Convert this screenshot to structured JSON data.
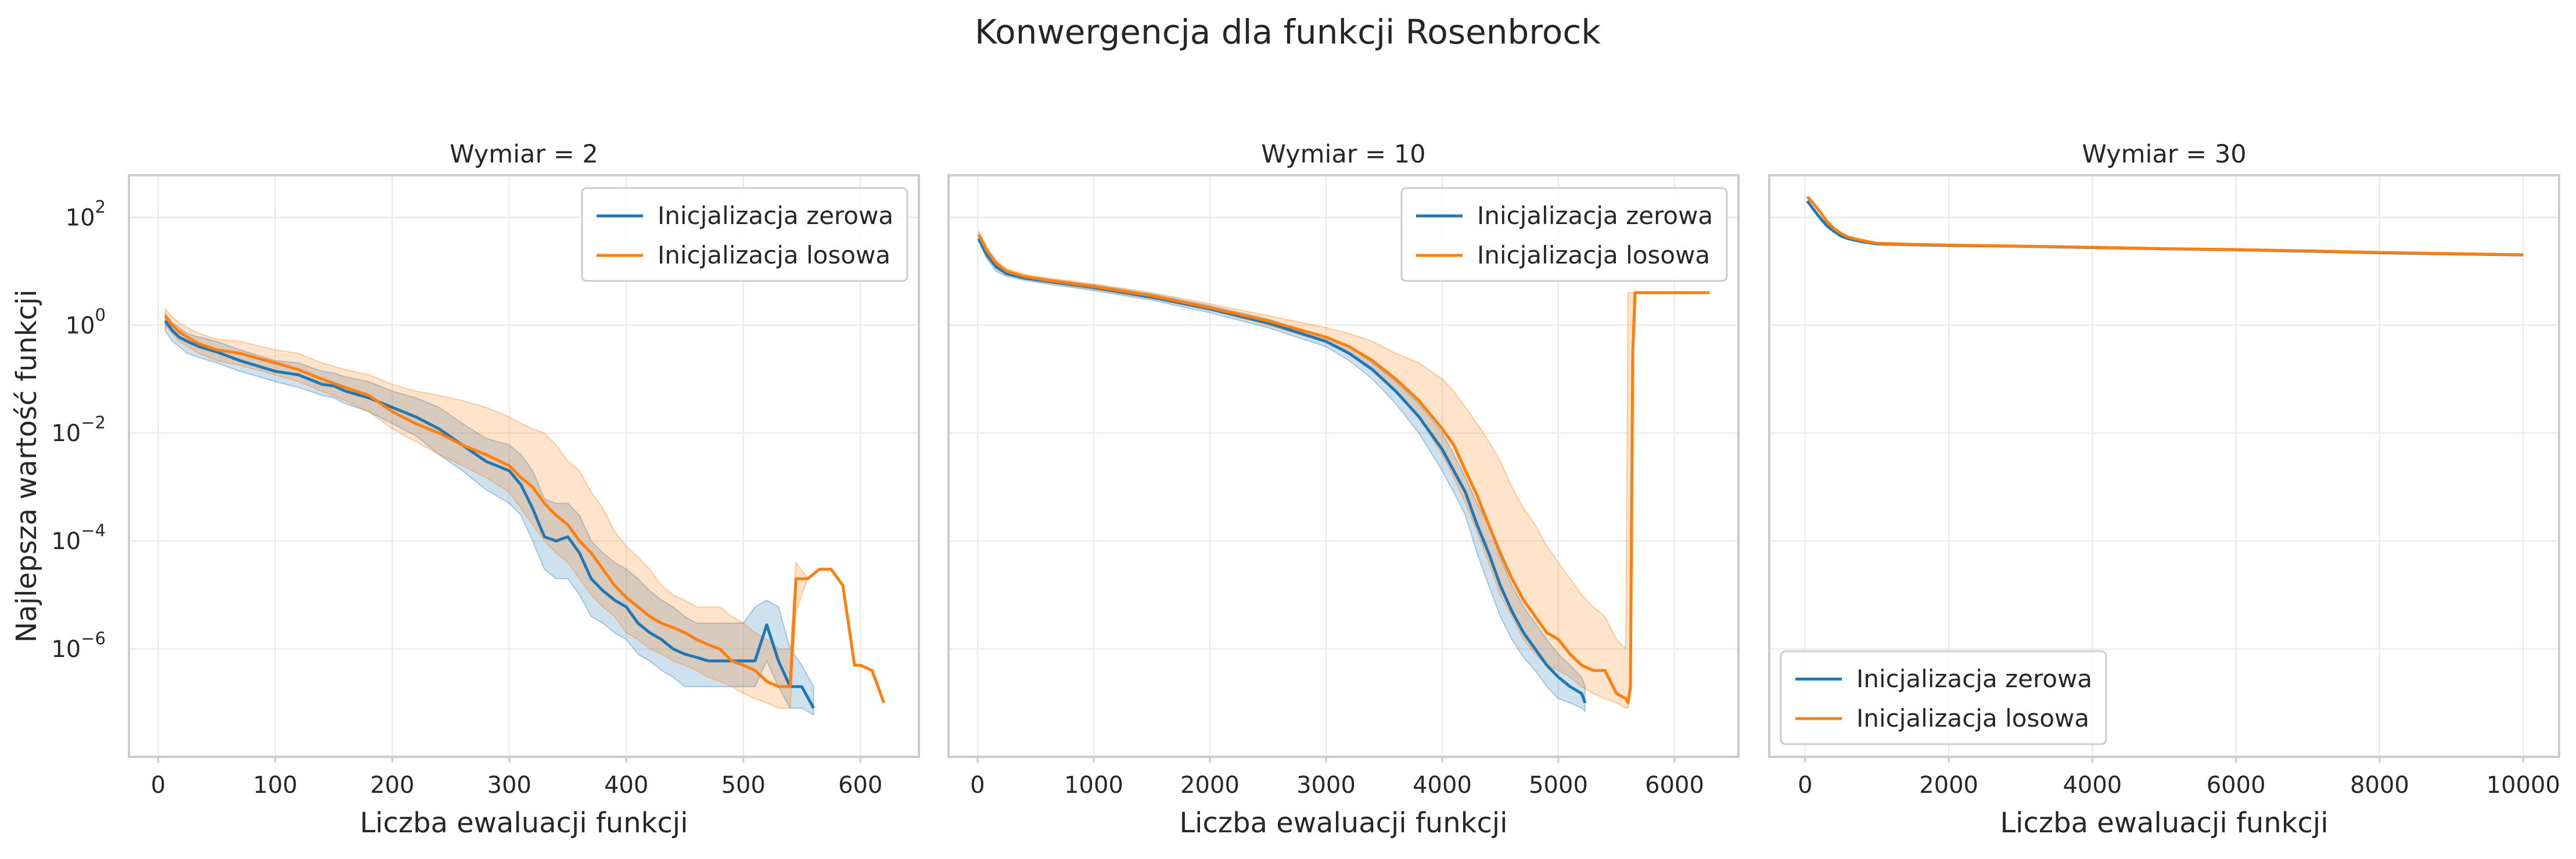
{
  "figure_title": "Konwergencja dla funkcji Rosenbrock",
  "colors": {
    "zero": "#1f77b4",
    "random": "#ff7f0e"
  },
  "chart_data": [
    {
      "type": "line",
      "title": "Wymiar = 2",
      "xlabel": "Liczba ewaluacji funkcji",
      "ylabel": "Najlepsza wartość funkcji",
      "y_scale": "log",
      "xlim": [
        -25,
        650
      ],
      "ylim": [
        1e-08,
        600
      ],
      "x_ticks": [
        0,
        100,
        200,
        300,
        400,
        500,
        600
      ],
      "x_tick_labels": [
        "0",
        "100",
        "200",
        "300",
        "400",
        "500",
        "600"
      ],
      "y_ticks": [
        100,
        1,
        0.01,
        0.0001,
        1e-06
      ],
      "y_tick_labels": [
        [
          "10",
          "2"
        ],
        [
          "10",
          "0"
        ],
        [
          "10",
          "−2"
        ],
        [
          "10",
          "−4"
        ],
        [
          "10",
          "−6"
        ]
      ],
      "grid": true,
      "legend_position": "top-right",
      "series": [
        {
          "name": "Inicjalizacja zerowa",
          "color": "#1f77b4",
          "x": [
            6,
            12,
            18,
            25,
            35,
            50,
            70,
            100,
            120,
            140,
            150,
            160,
            180,
            200,
            220,
            240,
            260,
            280,
            300,
            310,
            320,
            330,
            340,
            350,
            360,
            370,
            380,
            390,
            400,
            410,
            420,
            430,
            440,
            450,
            460,
            470,
            480,
            490,
            500,
            510,
            520,
            530,
            540,
            550,
            560
          ],
          "y": [
            1.2,
            0.8,
            0.6,
            0.5,
            0.4,
            0.32,
            0.22,
            0.14,
            0.12,
            0.08,
            0.075,
            0.06,
            0.045,
            0.03,
            0.02,
            0.012,
            0.006,
            0.003,
            0.002,
            0.0011,
            0.0004,
            0.00012,
            0.0001,
            0.00012,
            6e-05,
            2e-05,
            1.2e-05,
            8e-06,
            6e-06,
            3e-06,
            2e-06,
            1.5e-06,
            1e-06,
            8e-07,
            7e-07,
            6e-07,
            6e-07,
            6e-07,
            6e-07,
            6e-07,
            2.8e-06,
            6e-07,
            2e-07,
            2e-07,
            8e-08
          ],
          "band_lower": [
            0.8,
            0.5,
            0.4,
            0.3,
            0.25,
            0.2,
            0.14,
            0.09,
            0.07,
            0.05,
            0.045,
            0.035,
            0.025,
            0.015,
            0.009,
            0.004,
            0.002,
            0.0009,
            0.0005,
            0.0003,
            0.0001,
            3e-05,
            2e-05,
            2e-05,
            1e-05,
            4e-06,
            3e-06,
            2e-06,
            1.5e-06,
            8e-07,
            6e-07,
            4e-07,
            3e-07,
            2e-07,
            2e-07,
            2e-07,
            2e-07,
            2e-07,
            2e-07,
            2e-07,
            6e-07,
            2e-07,
            8e-08,
            8e-08,
            6e-08
          ],
          "band_upper": [
            1.6,
            1.1,
            0.9,
            0.7,
            0.6,
            0.5,
            0.35,
            0.22,
            0.2,
            0.14,
            0.13,
            0.11,
            0.09,
            0.06,
            0.045,
            0.03,
            0.015,
            0.008,
            0.006,
            0.004,
            0.002,
            0.0006,
            0.0005,
            0.0005,
            0.0003,
            0.0001,
            6e-05,
            4e-05,
            3e-05,
            2e-05,
            1.2e-05,
            8e-06,
            6e-06,
            4e-06,
            3e-06,
            3e-06,
            3e-06,
            3e-06,
            3e-06,
            6e-06,
            8e-06,
            6e-06,
            1e-06,
            5e-07,
            2e-07
          ]
        },
        {
          "name": "Inicjalizacja losowa",
          "color": "#ff7f0e",
          "x": [
            6,
            12,
            18,
            25,
            35,
            50,
            70,
            100,
            120,
            140,
            160,
            180,
            200,
            220,
            240,
            260,
            280,
            300,
            310,
            320,
            330,
            340,
            350,
            360,
            370,
            380,
            390,
            400,
            410,
            420,
            430,
            440,
            450,
            460,
            470,
            480,
            490,
            500,
            510,
            520,
            530,
            540,
            545,
            555,
            565,
            575,
            585,
            595,
            600,
            610,
            620
          ],
          "y": [
            1.5,
            1.0,
            0.75,
            0.6,
            0.45,
            0.35,
            0.3,
            0.2,
            0.15,
            0.1,
            0.07,
            0.05,
            0.025,
            0.015,
            0.01,
            0.006,
            0.004,
            0.0025,
            0.0015,
            0.001,
            0.0005,
            0.0003,
            0.0002,
            0.0001,
            6e-05,
            3e-05,
            1.5e-05,
            9e-06,
            6e-06,
            4e-06,
            3e-06,
            2.5e-06,
            2e-06,
            1.5e-06,
            1.2e-06,
            1e-06,
            6e-07,
            5e-07,
            4e-07,
            2.5e-07,
            2e-07,
            2e-07,
            2e-05,
            2e-05,
            3e-05,
            3e-05,
            1.5e-05,
            5e-07,
            5e-07,
            4e-07,
            1e-07
          ],
          "band_lower": [
            1.0,
            0.7,
            0.5,
            0.4,
            0.3,
            0.22,
            0.18,
            0.12,
            0.09,
            0.06,
            0.04,
            0.025,
            0.012,
            0.007,
            0.004,
            0.0025,
            0.0015,
            0.0008,
            0.0004,
            0.0002,
            0.0001,
            6e-05,
            4e-05,
            2e-05,
            1e-05,
            6e-06,
            4e-06,
            2e-06,
            1.5e-06,
            1e-06,
            8e-07,
            6e-07,
            5e-07,
            4e-07,
            3e-07,
            2.5e-07,
            2e-07,
            1.5e-07,
            1.2e-07,
            1e-07,
            8e-08,
            8e-08,
            5e-06,
            2e-05,
            3e-05,
            3e-05,
            1.5e-05,
            5e-07,
            5e-07,
            4e-07,
            1e-07
          ],
          "band_upper": [
            2.0,
            1.4,
            1.1,
            0.9,
            0.7,
            0.55,
            0.5,
            0.35,
            0.3,
            0.2,
            0.15,
            0.12,
            0.08,
            0.06,
            0.05,
            0.04,
            0.03,
            0.02,
            0.015,
            0.012,
            0.01,
            0.006,
            0.003,
            0.002,
            0.0008,
            0.0004,
            0.00015,
            8e-05,
            5e-05,
            3e-05,
            1.5e-05,
            1e-05,
            8e-06,
            6e-06,
            6e-06,
            6e-06,
            4e-06,
            3e-06,
            2e-06,
            1.5e-06,
            1e-06,
            1e-06,
            4e-05,
            2e-05,
            3e-05,
            3e-05,
            1.5e-05,
            5e-07,
            5e-07,
            4e-07,
            1e-07
          ]
        }
      ]
    },
    {
      "type": "line",
      "title": "Wymiar = 10",
      "xlabel": "Liczba ewaluacji funkcji",
      "ylabel": "",
      "y_scale": "log",
      "xlim": [
        -250,
        6550
      ],
      "ylim": [
        1e-08,
        600
      ],
      "x_ticks": [
        0,
        1000,
        2000,
        3000,
        4000,
        5000,
        6000
      ],
      "x_tick_labels": [
        "0",
        "1000",
        "2000",
        "3000",
        "4000",
        "5000",
        "6000"
      ],
      "grid": true,
      "legend_position": "top-right",
      "series": [
        {
          "name": "Inicjalizacja zerowa",
          "color": "#1f77b4",
          "x": [
            10,
            80,
            160,
            250,
            400,
            600,
            1000,
            1500,
            2000,
            2500,
            3000,
            3200,
            3400,
            3600,
            3800,
            4000,
            4100,
            4200,
            4300,
            4400,
            4500,
            4600,
            4700,
            4800,
            4900,
            5000,
            5100,
            5200,
            5230
          ],
          "y": [
            40,
            20,
            12,
            9,
            7.5,
            6.5,
            5,
            3.3,
            2,
            1.1,
            0.5,
            0.3,
            0.15,
            0.06,
            0.02,
            0.005,
            0.002,
            0.0008,
            0.0002,
            6e-05,
            1.5e-05,
            5e-06,
            2e-06,
            1e-06,
            5e-07,
            3e-07,
            2e-07,
            1.5e-07,
            1e-07
          ],
          "band_lower": [
            35,
            17,
            10,
            8,
            6.8,
            5.8,
            4.4,
            2.9,
            1.7,
            0.9,
            0.4,
            0.22,
            0.1,
            0.035,
            0.01,
            0.002,
            0.0008,
            0.0003,
            6e-05,
            1.5e-05,
            4e-06,
            1.5e-06,
            7e-07,
            4e-07,
            2e-07,
            1.2e-07,
            1e-07,
            8e-08,
            7e-08
          ],
          "band_upper": [
            45,
            23,
            14,
            10,
            8.2,
            7.2,
            5.6,
            3.8,
            2.3,
            1.3,
            0.6,
            0.4,
            0.2,
            0.09,
            0.035,
            0.01,
            0.004,
            0.0015,
            0.0005,
            0.0002,
            5e-05,
            1.5e-05,
            6e-06,
            3e-06,
            1.5e-06,
            8e-07,
            5e-07,
            3e-07,
            2e-07
          ]
        },
        {
          "name": "Inicjalizacja losowa",
          "color": "#ff7f0e",
          "x": [
            10,
            80,
            160,
            250,
            400,
            600,
            1000,
            1500,
            2000,
            2500,
            3000,
            3200,
            3400,
            3600,
            3800,
            4000,
            4100,
            4200,
            4300,
            4400,
            4500,
            4600,
            4700,
            4800,
            4900,
            5000,
            5100,
            5200,
            5300,
            5400,
            5500,
            5580,
            5600,
            5620,
            5640,
            5660,
            5700,
            6000,
            6300
          ],
          "y": [
            48,
            24,
            14,
            10,
            8,
            6.8,
            5.2,
            3.5,
            2.1,
            1.2,
            0.6,
            0.4,
            0.22,
            0.1,
            0.04,
            0.012,
            0.006,
            0.002,
            0.0007,
            0.0002,
            6e-05,
            2e-05,
            8e-06,
            4e-06,
            2e-06,
            1.5e-06,
            8e-07,
            5e-07,
            4e-07,
            4e-07,
            1.5e-07,
            1.2e-07,
            1e-07,
            2e-07,
            0.3,
            4,
            4,
            4,
            4
          ],
          "band_lower": [
            42,
            20,
            12,
            9,
            7.2,
            6.2,
            4.6,
            3.1,
            1.9,
            1.0,
            0.48,
            0.3,
            0.16,
            0.06,
            0.02,
            0.004,
            0.0015,
            0.0005,
            0.00015,
            4e-05,
            1e-05,
            4e-06,
            1.5e-06,
            8e-07,
            5e-07,
            4e-07,
            3e-07,
            2e-07,
            1.5e-07,
            1.2e-07,
            1e-07,
            8e-08,
            8e-08,
            2e-07,
            0.3,
            4,
            4,
            4,
            4
          ],
          "band_upper": [
            55,
            28,
            16,
            11,
            8.8,
            7.5,
            5.8,
            4.0,
            2.5,
            1.5,
            0.9,
            0.7,
            0.5,
            0.3,
            0.2,
            0.1,
            0.06,
            0.03,
            0.015,
            0.007,
            0.003,
            0.001,
            0.0004,
            0.0002,
            8e-05,
            4e-05,
            2e-05,
            1e-05,
            6e-06,
            4e-06,
            1.5e-06,
            1e-06,
            4,
            4,
            4,
            4,
            4,
            4,
            4
          ]
        }
      ]
    },
    {
      "type": "line",
      "title": "Wymiar = 30",
      "xlabel": "Liczba ewaluacji funkcji",
      "ylabel": "",
      "y_scale": "log",
      "xlim": [
        -500,
        10500
      ],
      "ylim": [
        1e-08,
        600
      ],
      "x_ticks": [
        0,
        2000,
        4000,
        6000,
        8000,
        10000
      ],
      "x_tick_labels": [
        "0",
        "2000",
        "4000",
        "6000",
        "8000",
        "10000"
      ],
      "grid": true,
      "legend_position": "bottom-left",
      "series": [
        {
          "name": "Inicjalizacja zerowa",
          "color": "#1f77b4",
          "x": [
            30,
            100,
            200,
            300,
            400,
            500,
            600,
            800,
            1000,
            1500,
            2000,
            3000,
            4000,
            5000,
            6000,
            7000,
            8000,
            9000,
            10000
          ],
          "y": [
            200,
            150,
            100,
            70,
            55,
            45,
            40,
            35,
            32,
            31,
            30,
            29,
            27.5,
            26,
            25,
            23.5,
            22,
            21,
            20
          ]
        },
        {
          "name": "Inicjalizacja losowa",
          "color": "#ff7f0e",
          "x": [
            30,
            100,
            200,
            300,
            400,
            500,
            600,
            800,
            1000,
            1500,
            2000,
            3000,
            4000,
            5000,
            6000,
            7000,
            8000,
            9000,
            10000
          ],
          "y": [
            240,
            190,
            130,
            85,
            62,
            50,
            43,
            37,
            33,
            31.5,
            30.5,
            29.2,
            27.8,
            26.2,
            25.2,
            23.8,
            22.3,
            21.2,
            20.2
          ]
        }
      ]
    }
  ]
}
